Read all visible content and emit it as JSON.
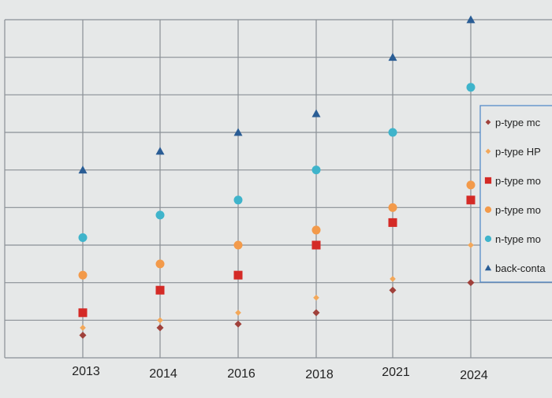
{
  "chart_data": {
    "type": "scatter",
    "title": "",
    "xlabel": "",
    "ylabel": "",
    "categories": [
      "2013",
      "2014",
      "2016",
      "2018",
      "2021",
      "2024"
    ],
    "y_gridlines": 9,
    "grid": true,
    "legend_placement": "right",
    "series": [
      {
        "name": "p-type mc",
        "marker": "diamond",
        "color": "#a0413b",
        "values": [
          0.6,
          0.8,
          0.9,
          1.2,
          1.8,
          2.0
        ]
      },
      {
        "name": "p-type HP",
        "marker": "diamond",
        "color": "#f3a85a",
        "values": [
          0.8,
          1.0,
          1.2,
          1.6,
          2.1,
          3.0
        ]
      },
      {
        "name": "p-type mo",
        "marker": "square",
        "color": "#d42a26",
        "values": [
          1.2,
          1.8,
          2.2,
          3.0,
          3.6,
          4.2
        ]
      },
      {
        "name": "p-type mo",
        "marker": "circle",
        "color": "#f39a4a",
        "values": [
          2.2,
          2.5,
          3.0,
          3.4,
          4.0,
          4.6
        ]
      },
      {
        "name": "n-type mo",
        "marker": "circle",
        "color": "#3fb4cb",
        "values": [
          3.2,
          3.8,
          4.2,
          5.0,
          6.0,
          7.2
        ]
      },
      {
        "name": "back-conta",
        "marker": "triangle",
        "color": "#2a5d95",
        "values": [
          5.0,
          5.5,
          6.0,
          6.5,
          8.0,
          9.0
        ]
      }
    ],
    "colors": {
      "background": "#e6e8e8",
      "grid": "#8a9096",
      "legend_border": "#4a84c8",
      "text": "#222222"
    }
  }
}
